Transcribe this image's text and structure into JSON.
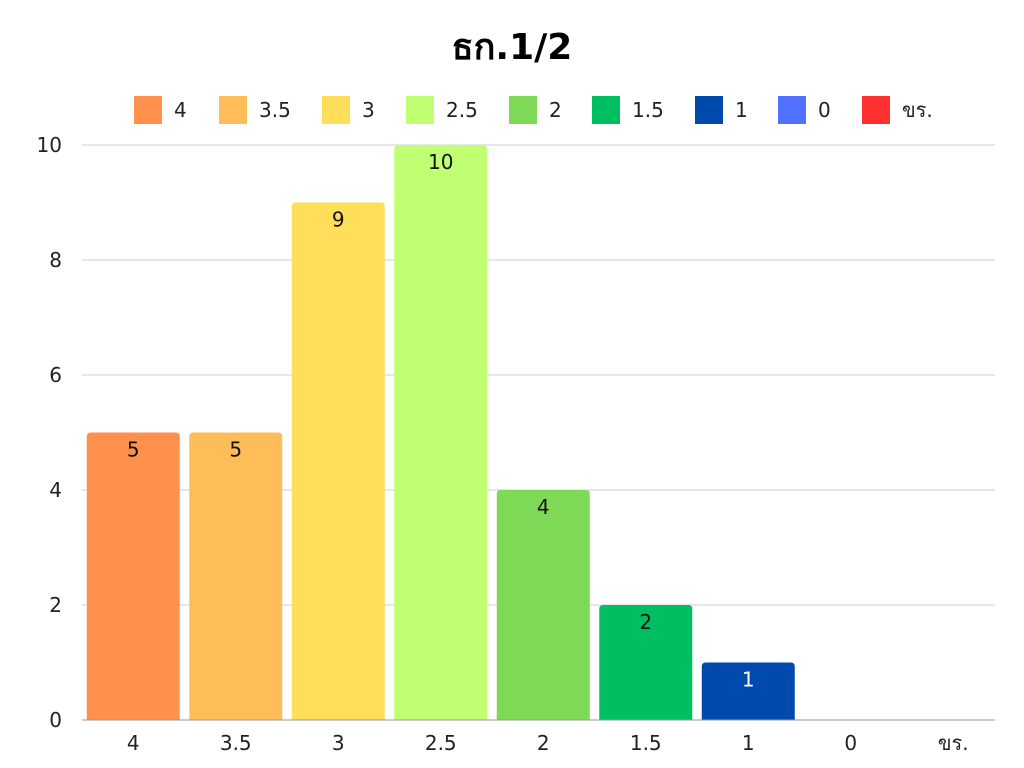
{
  "chart_data": {
    "type": "bar",
    "title": "ธก.1/2",
    "categories": [
      "4",
      "3.5",
      "3",
      "2.5",
      "2",
      "1.5",
      "1",
      "0",
      "ขร."
    ],
    "values": [
      5,
      5,
      9,
      10,
      4,
      2,
      1,
      0,
      0
    ],
    "colors": [
      "#FF914D",
      "#FFBD59",
      "#FFDE59",
      "#C1FF72",
      "#7ED957",
      "#00BF63",
      "#004AAD",
      "#5271FF",
      "#FF3131"
    ],
    "data_labels": [
      "5",
      "5",
      "9",
      "10",
      "4",
      "2",
      "1",
      "",
      ""
    ],
    "ylim": [
      0,
      10
    ],
    "yticks": [
      0,
      2,
      4,
      6,
      8,
      10
    ],
    "xlabel": "",
    "ylabel": "",
    "grid": true,
    "legend_position": "top",
    "legend": [
      "4",
      "3.5",
      "3",
      "2.5",
      "2",
      "1.5",
      "1",
      "0",
      "ขร."
    ]
  }
}
